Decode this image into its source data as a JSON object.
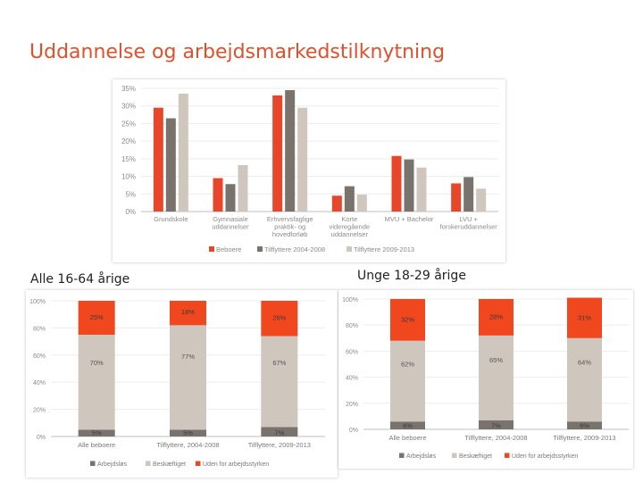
{
  "title": "Uddannelse og arbejdsmarkedstilknytning",
  "subtitles": {
    "all": "Alle 16-64 årige",
    "young": "Unge 18-29 årige"
  },
  "colors": {
    "title": "#e0502a",
    "beboere": "#e8462a",
    "tilflyttere_2004_2008": "#7a726c",
    "tilflyttere_2009_2013": "#cfc6bd",
    "arbejdslos": "#7a726c",
    "beskaeftiget": "#cfc6bd",
    "uden": "#f0471f"
  },
  "chart_data": [
    {
      "type": "bar",
      "categories": [
        [
          "Grundskole"
        ],
        [
          "Gymnasiale",
          "uddannelser"
        ],
        [
          "Erhvervsfaglige",
          "praktik- og",
          "hovedforløb"
        ],
        [
          "Korte",
          "videregående",
          "uddannelser"
        ],
        [
          "MVU + Bachelor"
        ],
        [
          "LVU +",
          "forskeruddannelser"
        ]
      ],
      "series": [
        {
          "name": "Beboere",
          "values": [
            29.5,
            9.5,
            33,
            4.5,
            15.8,
            8
          ]
        },
        {
          "name": "Tilflyttere 2004-2008",
          "values": [
            26.5,
            7.8,
            34.5,
            7.2,
            14.8,
            9.8
          ]
        },
        {
          "name": "Tilflyttere 2009-2013",
          "values": [
            33.5,
            13.2,
            29.5,
            4.8,
            12.5,
            6.5
          ]
        }
      ],
      "yticks": [
        "0%",
        "5%",
        "10%",
        "15%",
        "20%",
        "25%",
        "30%",
        "35%"
      ],
      "ylim": [
        0,
        35
      ],
      "legend": "bottom"
    },
    {
      "type": "bar",
      "stacked": true,
      "categories": [
        "Alle beboere",
        "Tilflyttere, 2004-2008",
        "Tilflyttere, 2009-2013"
      ],
      "series": [
        {
          "name": "Arbejdsløs",
          "values": [
            5,
            5,
            7
          ],
          "labels": [
            "5%",
            "5%",
            "7%"
          ]
        },
        {
          "name": "Beskæftiget",
          "values": [
            70,
            77,
            67
          ],
          "labels": [
            "70%",
            "77%",
            "67%"
          ]
        },
        {
          "name": "Uden for arbejdsstyrken",
          "values": [
            25,
            18,
            26
          ],
          "labels": [
            "25%",
            "18%",
            "26%"
          ]
        }
      ],
      "yticks": [
        "0%",
        "20%",
        "40%",
        "60%",
        "80%",
        "100%"
      ],
      "ylim": [
        0,
        100
      ],
      "legend": "bottom"
    },
    {
      "type": "bar",
      "stacked": true,
      "categories": [
        "Alle beboere",
        "Tilflyttere, 2004-2008",
        "Tilflyttere, 2009-2013"
      ],
      "series": [
        {
          "name": "Arbejdsløs",
          "values": [
            6,
            7,
            6
          ],
          "labels": [
            "6%",
            "7%",
            "6%"
          ]
        },
        {
          "name": "Beskæftiget",
          "values": [
            62,
            65,
            64
          ],
          "labels": [
            "62%",
            "65%",
            "64%"
          ]
        },
        {
          "name": "Uden for arbejdsstyrken",
          "values": [
            32,
            28,
            31
          ],
          "labels": [
            "32%",
            "28%",
            "31%"
          ]
        }
      ],
      "yticks": [
        "0%",
        "20%",
        "40%",
        "60%",
        "80%",
        "100%"
      ],
      "ylim": [
        0,
        100
      ],
      "legend": "bottom"
    }
  ]
}
